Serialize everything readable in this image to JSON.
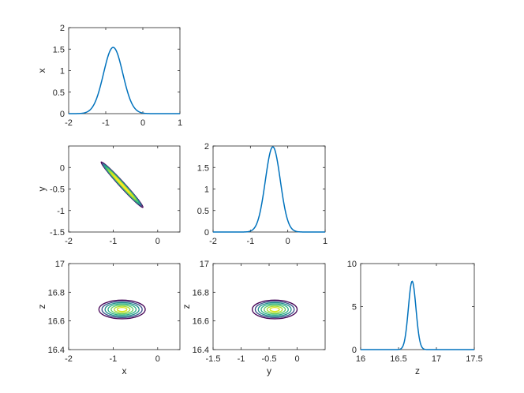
{
  "chart_data": [
    {
      "id": "x-marginal",
      "type": "line",
      "ylabel": "x",
      "xlim": [
        -2,
        1
      ],
      "ylim": [
        0,
        2
      ],
      "xticks": [
        "-2",
        "-1",
        "0",
        "1"
      ],
      "yticks": [
        "0",
        "0.5",
        "1",
        "1.5",
        "2"
      ],
      "series": [
        {
          "curve": "gaussian",
          "mean": -0.8,
          "sd": 0.26,
          "peak": 1.54,
          "color": "#0072BD"
        }
      ]
    },
    {
      "id": "xy-contour",
      "type": "contour",
      "ylabel": "y",
      "xlim": [
        -2,
        0.5
      ],
      "ylim": [
        -1.5,
        0.5
      ],
      "xticks": [
        "-2",
        "-1",
        "0"
      ],
      "yticks": [
        "-1.5",
        "-1",
        "-0.5",
        "0"
      ],
      "contour": {
        "center": [
          -0.8,
          -0.4
        ],
        "direction": [
          0.71,
          -0.8
        ],
        "half_length": 0.66,
        "half_width": 0.03,
        "levels": 8
      }
    },
    {
      "id": "y-marginal",
      "type": "line",
      "xlim": [
        -2,
        1
      ],
      "ylim": [
        0,
        2
      ],
      "xticks": [
        "-2",
        "-1",
        "0",
        "1"
      ],
      "yticks": [
        "0",
        "0.5",
        "1",
        "1.5",
        "2"
      ],
      "series": [
        {
          "curve": "gaussian",
          "mean": -0.4,
          "sd": 0.2,
          "peak": 1.98,
          "color": "#0072BD"
        }
      ]
    },
    {
      "id": "xz-contour",
      "type": "contour",
      "xlabel": "x",
      "ylabel": "z",
      "xlim": [
        -2,
        0.5
      ],
      "ylim": [
        16.4,
        17
      ],
      "xticks": [
        "-2",
        "-1",
        "0"
      ],
      "yticks": [
        "16.4",
        "16.6",
        "16.8",
        "17"
      ],
      "contour": {
        "center": [
          -0.8,
          16.68
        ],
        "rx": 0.52,
        "ry": 0.065,
        "levels": 7
      }
    },
    {
      "id": "yz-contour",
      "type": "contour",
      "xlabel": "y",
      "ylabel": "z",
      "xlim": [
        -1.5,
        0.5
      ],
      "ylim": [
        16.4,
        17
      ],
      "xticks": [
        "-1.5",
        "-1",
        "-0.5",
        "0"
      ],
      "yticks": [
        "16.4",
        "16.6",
        "16.8",
        "17"
      ],
      "contour": {
        "center": [
          -0.4,
          16.68
        ],
        "rx": 0.4,
        "ry": 0.065,
        "levels": 7
      }
    },
    {
      "id": "z-marginal",
      "type": "line",
      "xlabel": "z",
      "xlim": [
        16,
        17.5
      ],
      "ylim": [
        0,
        10
      ],
      "xticks": [
        "16",
        "16.5",
        "17",
        "17.5"
      ],
      "yticks": [
        "0",
        "5",
        "10"
      ],
      "series": [
        {
          "curve": "gaussian",
          "mean": 16.68,
          "sd": 0.05,
          "peak": 7.95,
          "color": "#0072BD"
        }
      ]
    }
  ],
  "colors": {
    "line": "#0072BD",
    "axes": "#262626",
    "contour_levels": [
      "#440154",
      "#3b528b",
      "#21918c",
      "#27ad81",
      "#5ec962",
      "#aadc32",
      "#d8e219",
      "#fde725"
    ]
  }
}
